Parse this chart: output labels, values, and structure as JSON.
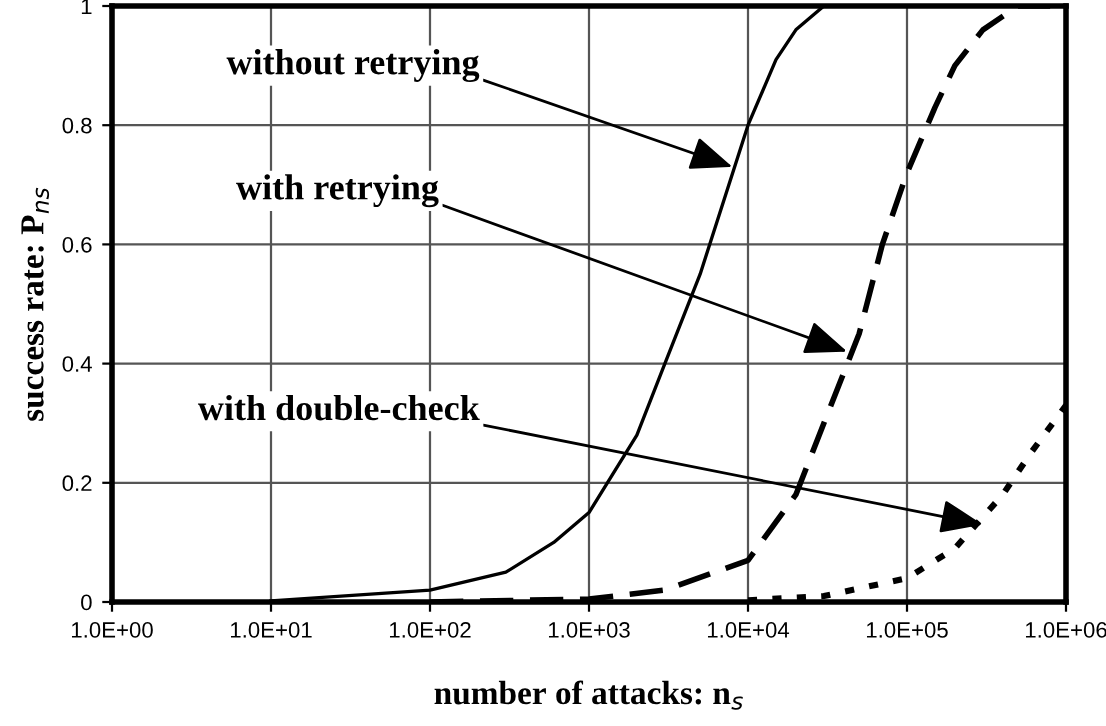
{
  "chart_data": {
    "type": "line",
    "xlabel": "number of attacks: n$_{s}$",
    "ylabel": "success rate: P$_{ns}$",
    "log": "x",
    "xlim": [
      1,
      1000000
    ],
    "xticks": [
      {
        "value": 1,
        "label": "1.0E+00"
      },
      {
        "value": 10,
        "label": "1.0E+01"
      },
      {
        "value": 100,
        "label": "1.0E+02"
      },
      {
        "value": 1000,
        "label": "1.0E+03"
      },
      {
        "value": 10000,
        "label": "1.0E+04"
      },
      {
        "value": 100000,
        "label": "1.0E+05"
      },
      {
        "value": 1000000,
        "label": "1.0E+06"
      }
    ],
    "ylim": [
      0,
      1
    ],
    "yticks": [
      0,
      0.2,
      0.4,
      0.6,
      0.8,
      1
    ],
    "grid": true,
    "legend": false,
    "series": [
      {
        "color": "#000000",
        "line_style": "solid",
        "x": [
          10,
          100,
          300,
          600,
          1000,
          2000,
          3000,
          5000,
          10000,
          15000,
          20000,
          30000,
          1000000
        ],
        "values": [
          0.002,
          0.02,
          0.05,
          0.1,
          0.15,
          0.28,
          0.4,
          0.55,
          0.8,
          0.91,
          0.96,
          1.0,
          1.0
        ]
      },
      {
        "color": "#000000",
        "line_style": "dashed",
        "x": [
          100,
          1000,
          3000,
          10000,
          20000,
          30000,
          50000,
          70000,
          100000,
          150000,
          200000,
          300000,
          500000,
          1000000
        ],
        "values": [
          0.0,
          0.005,
          0.02,
          0.07,
          0.18,
          0.3,
          0.45,
          0.6,
          0.72,
          0.83,
          0.9,
          0.96,
          1.0,
          1.0
        ]
      },
      {
        "color": "#000000",
        "line_style": "dotted",
        "x": [
          10000,
          30000,
          100000,
          200000,
          400000,
          600000,
          1000000
        ],
        "values": [
          0.003,
          0.01,
          0.04,
          0.09,
          0.18,
          0.25,
          0.33
        ]
      }
    ],
    "annotations": [
      {
        "text": "without retrying",
        "x": 8000,
        "y": 0.73
      },
      {
        "text": "with retrying",
        "x": 42000,
        "y": 0.42
      },
      {
        "text": "with double-check",
        "x": 300000,
        "y": 0.13
      }
    ]
  }
}
